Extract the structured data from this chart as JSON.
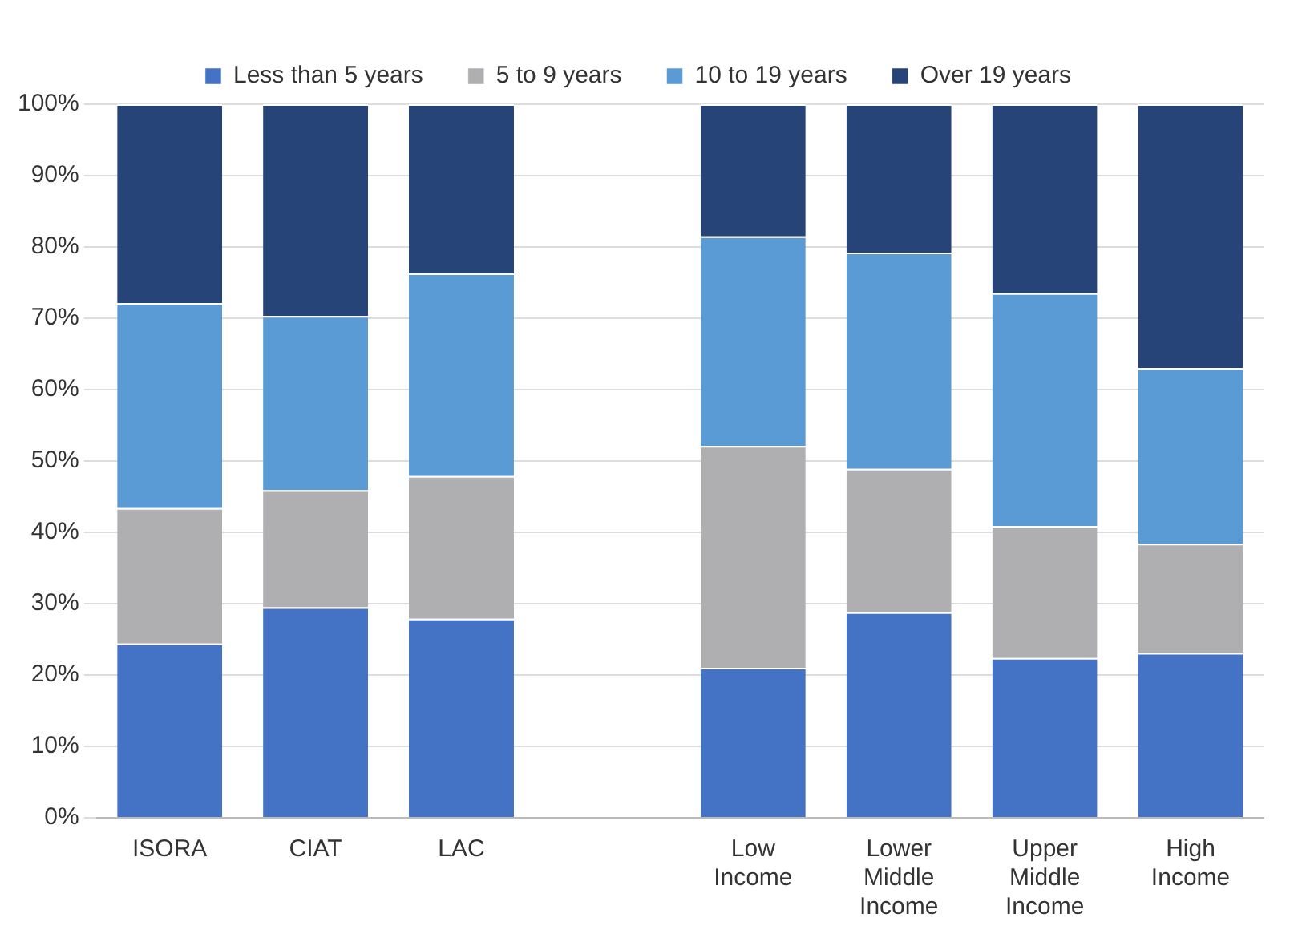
{
  "chart_data": {
    "type": "bar",
    "stacked": true,
    "categories": [
      "ISORA",
      "CIAT",
      "LAC",
      null,
      "Low Income",
      "Lower Middle Income",
      "Upper Middle Income",
      "High Income"
    ],
    "series": [
      {
        "name": "Less than 5 years",
        "color": "#4472c4",
        "values": [
          24.4,
          29.5,
          27.9,
          null,
          21.0,
          28.8,
          22.4,
          23.1
        ]
      },
      {
        "name": "5 to 9 years",
        "color": "#afafb1",
        "values": [
          19.0,
          16.4,
          20.0,
          null,
          31.1,
          20.1,
          18.5,
          15.3
        ]
      },
      {
        "name": "10 to 19 years",
        "color": "#5b9bd5",
        "values": [
          28.7,
          24.4,
          28.4,
          null,
          29.4,
          30.3,
          32.6,
          24.6
        ]
      },
      {
        "name": "Over 19 years",
        "color": "#264478",
        "values": [
          27.9,
          29.7,
          23.7,
          null,
          18.5,
          20.8,
          26.5,
          37.0
        ]
      }
    ],
    "ylim": [
      0,
      100
    ],
    "yticks": [
      {
        "value": 0,
        "label": "0%"
      },
      {
        "value": 10,
        "label": "10%"
      },
      {
        "value": 20,
        "label": "20%"
      },
      {
        "value": 30,
        "label": "30%"
      },
      {
        "value": 40,
        "label": "40%"
      },
      {
        "value": 50,
        "label": "50%"
      },
      {
        "value": 60,
        "label": "60%"
      },
      {
        "value": 70,
        "label": "70%"
      },
      {
        "value": 80,
        "label": "80%"
      },
      {
        "value": 90,
        "label": "90%"
      },
      {
        "value": 100,
        "label": "100%"
      }
    ],
    "grid": "y",
    "legend": "top"
  }
}
